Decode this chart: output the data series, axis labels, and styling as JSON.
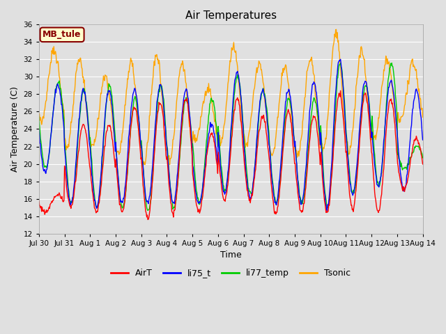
{
  "title": "Air Temperatures",
  "xlabel": "Time",
  "ylabel": "Air Temperature (C)",
  "ylim": [
    12,
    36
  ],
  "yticks": [
    12,
    14,
    16,
    18,
    20,
    22,
    24,
    26,
    28,
    30,
    32,
    34,
    36
  ],
  "plot_bg_color": "#e0e0e0",
  "fig_bg_color": "#e0e0e0",
  "annotation_text": "MB_tule",
  "annotation_bg": "#ffffcc",
  "annotation_border": "#880000",
  "annotation_text_color": "#880000",
  "colors": {
    "AirT": "#ff0000",
    "li75_t": "#0000ff",
    "li77_temp": "#00cc00",
    "Tsonic": "#ffa500"
  },
  "xtick_labels": [
    "Jul 30",
    "Jul 31",
    "Aug 1",
    "Aug 2",
    "Aug 3",
    "Aug 4",
    "Aug 5",
    "Aug 6",
    "Aug 7",
    "Aug 8",
    "Aug 9",
    "Aug 10",
    "Aug 11",
    "Aug 12",
    "Aug 13",
    "Aug 14"
  ],
  "n_days": 15,
  "points_per_day": 48
}
